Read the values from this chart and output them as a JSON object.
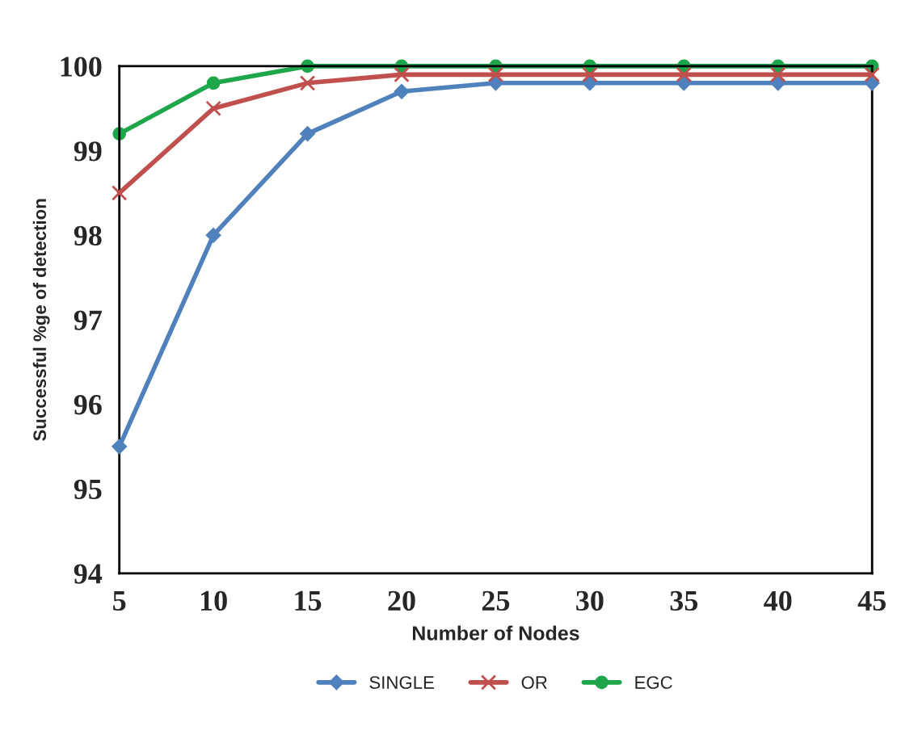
{
  "chart_data": {
    "type": "line",
    "xlabel": "Number of Nodes",
    "ylabel": "Successful %ge of detection",
    "x": [
      5,
      10,
      15,
      20,
      25,
      30,
      35,
      40,
      45
    ],
    "series": [
      {
        "name": "SINGLE",
        "color": "#4f81bd",
        "marker": "diamond",
        "values": [
          95.5,
          98.0,
          99.2,
          99.7,
          99.8,
          99.8,
          99.8,
          99.8,
          99.8
        ]
      },
      {
        "name": "OR",
        "color": "#c0504d",
        "marker": "cross",
        "values": [
          98.5,
          99.5,
          99.8,
          99.9,
          99.9,
          99.9,
          99.9,
          99.9,
          99.9
        ]
      },
      {
        "name": "EGC",
        "color": "#1ea64a",
        "marker": "circle",
        "values": [
          99.2,
          99.8,
          100.0,
          100.0,
          100.0,
          100.0,
          100.0,
          100.0,
          100.0
        ]
      }
    ],
    "xlim": [
      5,
      45
    ],
    "xticks": [
      5,
      10,
      15,
      20,
      25,
      30,
      35,
      40,
      45
    ],
    "ylim": [
      94,
      100
    ],
    "yticks": [
      94,
      95,
      96,
      97,
      98,
      99,
      100
    ],
    "grid": false,
    "legend": "bottom",
    "line_style": "solid"
  }
}
